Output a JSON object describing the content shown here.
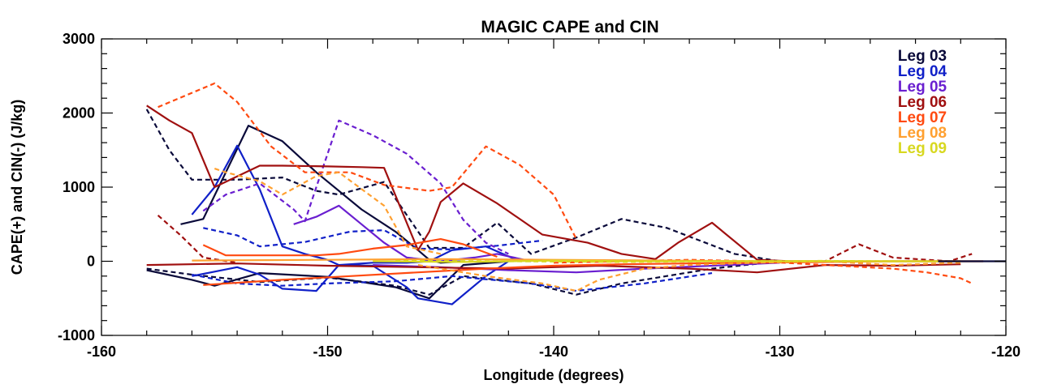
{
  "chart_data": {
    "type": "line",
    "title": "MAGIC CAPE and CIN",
    "xlabel": "Longitude (degrees)",
    "ylabel": "CAPE(+) and CIN(-) (J/kg)",
    "xlim": [
      -160,
      -120
    ],
    "ylim": [
      -1000,
      3000
    ],
    "x_major_ticks": [
      -160,
      -150,
      -140,
      -130,
      -120
    ],
    "y_major_ticks": [
      -1000,
      0,
      1000,
      2000,
      3000
    ],
    "x_tick_labels": [
      "-160",
      "-150",
      "-140",
      "-130",
      "-120"
    ],
    "y_tick_labels": [
      "-1000",
      "0",
      "1000",
      "2000",
      "3000"
    ],
    "grid": false,
    "legend_position": "top-right",
    "series": [
      {
        "name": "Leg 03",
        "color": "#0a0a3a",
        "style": "solid",
        "x": [
          -156.5,
          -155.5,
          -153.5,
          -152,
          -150.5,
          -148.5,
          -147,
          -146,
          -145.5,
          -145,
          -144
        ],
        "y": [
          500,
          570,
          1830,
          1620,
          1200,
          700,
          400,
          150,
          20,
          -20,
          0
        ]
      },
      {
        "name": "Leg 03",
        "color": "#0a0a3a",
        "style": "solid",
        "x": [
          -158,
          -156,
          -155,
          -153,
          -150,
          -147,
          -145.5,
          -144,
          -142
        ],
        "y": [
          -120,
          -250,
          -330,
          -160,
          -210,
          -350,
          -500,
          -50,
          0
        ]
      },
      {
        "name": "Leg 03",
        "color": "#0a0a3a",
        "style": "dashed",
        "x": [
          -158,
          -157,
          -156,
          -154,
          -152,
          -150.5,
          -149.5,
          -147.5,
          -145.5,
          -144,
          -142.5,
          -141,
          -139,
          -137,
          -135,
          -132,
          -130
        ],
        "y": [
          2050,
          1500,
          1100,
          1100,
          1130,
          950,
          900,
          1070,
          180,
          180,
          520,
          100,
          320,
          570,
          450,
          100,
          0
        ]
      },
      {
        "name": "Leg 03",
        "color": "#0a0a3a",
        "style": "dashed",
        "x": [
          -158,
          -156,
          -153,
          -150,
          -147,
          -145.5,
          -144,
          -141,
          -139,
          -137,
          -133,
          -130
        ],
        "y": [
          -100,
          -180,
          -280,
          -220,
          -330,
          -450,
          -200,
          -300,
          -450,
          -300,
          -100,
          0
        ]
      },
      {
        "name": "Leg 04",
        "color": "#1020c8",
        "style": "solid",
        "x": [
          -156,
          -155,
          -154,
          -153,
          -152,
          -151,
          -150,
          -149.5,
          -148,
          -146.5,
          -145.5,
          -144.5,
          -143,
          -141.5
        ],
        "y": [
          630,
          1000,
          1560,
          970,
          200,
          100,
          20,
          -50,
          -20,
          -20,
          0,
          150,
          200,
          0
        ]
      },
      {
        "name": "Leg 04",
        "color": "#1020c8",
        "style": "solid",
        "x": [
          -156,
          -154,
          -153,
          -152,
          -150.5,
          -149.5,
          -148,
          -146.5,
          -146,
          -144.5,
          -143,
          -142
        ],
        "y": [
          -200,
          -80,
          -180,
          -370,
          -400,
          -50,
          -60,
          -350,
          -500,
          -580,
          -200,
          0
        ]
      },
      {
        "name": "Leg 04",
        "color": "#1020c8",
        "style": "dashed",
        "x": [
          -155.5,
          -154,
          -153,
          -151,
          -149,
          -147.5,
          -146,
          -144.5,
          -142.5,
          -140.5
        ],
        "y": [
          450,
          350,
          200,
          260,
          400,
          420,
          170,
          160,
          210,
          280
        ]
      },
      {
        "name": "Leg 04",
        "color": "#1020c8",
        "style": "dashed",
        "x": [
          -156,
          -154,
          -152,
          -150,
          -147,
          -144.5,
          -141,
          -139,
          -136,
          -133
        ],
        "y": [
          -180,
          -300,
          -330,
          -300,
          -270,
          -200,
          -300,
          -400,
          -300,
          -160
        ]
      },
      {
        "name": "Leg 05",
        "color": "#6a1fd0",
        "style": "solid",
        "x": [
          -151.5,
          -150.5,
          -149.5,
          -148.5,
          -147.5,
          -146.5,
          -145,
          -143.5,
          -142.5,
          -141
        ],
        "y": [
          500,
          600,
          750,
          500,
          250,
          50,
          0,
          50,
          100,
          0
        ]
      },
      {
        "name": "Leg 05",
        "color": "#6a1fd0",
        "style": "dashed",
        "x": [
          -155.5,
          -154.5,
          -153,
          -151.5,
          -151,
          -150.5,
          -149.5,
          -148,
          -146.5,
          -145,
          -144,
          -143,
          -142
        ],
        "y": [
          680,
          900,
          1050,
          700,
          540,
          1000,
          1900,
          1700,
          1450,
          1050,
          560,
          250,
          100
        ]
      },
      {
        "name": "Leg 05",
        "color": "#6a1fd0",
        "style": "solid",
        "x": [
          -148,
          -145,
          -142,
          -139,
          -136,
          -133,
          -130
        ],
        "y": [
          -50,
          -80,
          -120,
          -150,
          -100,
          -60,
          -20
        ]
      },
      {
        "name": "Leg 06",
        "color": "#a01010",
        "style": "solid",
        "x": [
          -158,
          -157,
          -156,
          -155,
          -153,
          -152,
          -150,
          -148.5,
          -147.5,
          -146,
          -145.5,
          -145,
          -144,
          -142.5,
          -140.5,
          -138.5,
          -137,
          -135.5,
          -134.5,
          -133,
          -131,
          -129.5,
          -127,
          -125,
          -123,
          -121
        ],
        "y": [
          2100,
          1900,
          1730,
          1000,
          1290,
          1290,
          1280,
          1270,
          1260,
          150,
          400,
          800,
          1050,
          780,
          360,
          250,
          100,
          30,
          250,
          520,
          20,
          0,
          0,
          0,
          0,
          0
        ]
      },
      {
        "name": "Leg 06",
        "color": "#a01010",
        "style": "solid",
        "x": [
          -158,
          -154,
          -150,
          -146,
          -142,
          -138,
          -134,
          -131,
          -128,
          -125,
          -122
        ],
        "y": [
          -50,
          -30,
          -60,
          -80,
          -100,
          -60,
          -100,
          -150,
          -50,
          -60,
          -40
        ]
      },
      {
        "name": "Leg 06",
        "color": "#a01010",
        "style": "dashed",
        "x": [
          -157.5,
          -156.5,
          -155.5,
          -154
        ],
        "y": [
          620,
          350,
          50,
          -20
        ]
      },
      {
        "name": "Leg 06",
        "color": "#a01010",
        "style": "dashed",
        "x": [
          -131,
          -128,
          -126.5,
          -125,
          -122.5,
          -121.5
        ],
        "y": [
          0,
          0,
          230,
          50,
          0,
          100
        ]
      },
      {
        "name": "Leg 07",
        "color": "#ff4a10",
        "style": "solid",
        "x": [
          -155.5,
          -154.5,
          -153,
          -150.5,
          -149.5,
          -148,
          -146.5,
          -145,
          -144,
          -142.5
        ],
        "y": [
          220,
          80,
          80,
          80,
          100,
          170,
          220,
          300,
          230,
          60
        ]
      },
      {
        "name": "Leg 07",
        "color": "#ff4a10",
        "style": "solid",
        "x": [
          -155.5,
          -152,
          -149,
          -146,
          -143,
          -140,
          -137,
          -134,
          -131,
          -128,
          -125,
          -122
        ],
        "y": [
          -320,
          -250,
          -200,
          -150,
          -100,
          -60,
          -40,
          -30,
          -20,
          -10,
          0,
          0
        ]
      },
      {
        "name": "Leg 07",
        "color": "#ff4a10",
        "style": "dashed",
        "x": [
          -157.5,
          -155,
          -154,
          -152.5,
          -151,
          -149,
          -147.5,
          -145.5,
          -144.5,
          -143,
          -141.5,
          -140,
          -139
        ],
        "y": [
          2080,
          2400,
          2150,
          1550,
          1200,
          1200,
          1030,
          950,
          1000,
          1550,
          1300,
          900,
          300
        ]
      },
      {
        "name": "Leg 07",
        "color": "#ff4a10",
        "style": "dashed",
        "x": [
          -140,
          -137,
          -134,
          -131,
          -128,
          -125,
          -123.5,
          -122,
          -121.5
        ],
        "y": [
          -20,
          0,
          20,
          0,
          -50,
          -100,
          -150,
          -230,
          -300
        ]
      },
      {
        "name": "Leg 08",
        "color": "#ffa030",
        "style": "dashed",
        "x": [
          -155,
          -154.5,
          -153,
          -152,
          -150.5,
          -149.5,
          -147.5,
          -146.5,
          -145
        ],
        "y": [
          1250,
          1200,
          1080,
          900,
          1150,
          1200,
          750,
          200,
          100
        ]
      },
      {
        "name": "Leg 08",
        "color": "#ffa030",
        "style": "dashed",
        "x": [
          -146,
          -143,
          -140.5,
          -139,
          -138,
          -136,
          -134,
          -131,
          -128,
          -125,
          -122
        ],
        "y": [
          -50,
          -200,
          -300,
          -400,
          -250,
          -100,
          -50,
          -20,
          0,
          -50,
          -20
        ]
      },
      {
        "name": "Leg 08",
        "color": "#ffa030",
        "style": "solid",
        "x": [
          -156,
          -150,
          -145,
          -140,
          -135,
          -130,
          -125,
          -121
        ],
        "y": [
          10,
          20,
          30,
          20,
          10,
          0,
          0,
          0
        ]
      },
      {
        "name": "Leg 09",
        "color": "#d8d820",
        "style": "solid",
        "x": [
          -148,
          -144,
          -140,
          -136,
          -132,
          -128,
          -124,
          -122
        ],
        "y": [
          0,
          -10,
          10,
          0,
          0,
          0,
          0,
          0
        ]
      },
      {
        "name": "Leg 09",
        "color": "#d8d820",
        "style": "dashed",
        "x": [
          -147,
          -142,
          -137,
          -133,
          -128,
          -124
        ],
        "y": [
          5,
          0,
          -10,
          0,
          5,
          0
        ]
      },
      {
        "name": "Leg 03",
        "color": "#0a0a3a",
        "style": "solid",
        "x": [
          -123,
          -120
        ],
        "y": [
          0,
          0
        ]
      }
    ],
    "legend": [
      {
        "label": "Leg 03",
        "color": "#0a0a3a"
      },
      {
        "label": "Leg 04",
        "color": "#1020c8"
      },
      {
        "label": "Leg 05",
        "color": "#6a1fd0"
      },
      {
        "label": "Leg 06",
        "color": "#a01010"
      },
      {
        "label": "Leg 07",
        "color": "#ff4a10"
      },
      {
        "label": "Leg 08",
        "color": "#ffa030"
      },
      {
        "label": "Leg 09",
        "color": "#d8d820"
      }
    ]
  }
}
